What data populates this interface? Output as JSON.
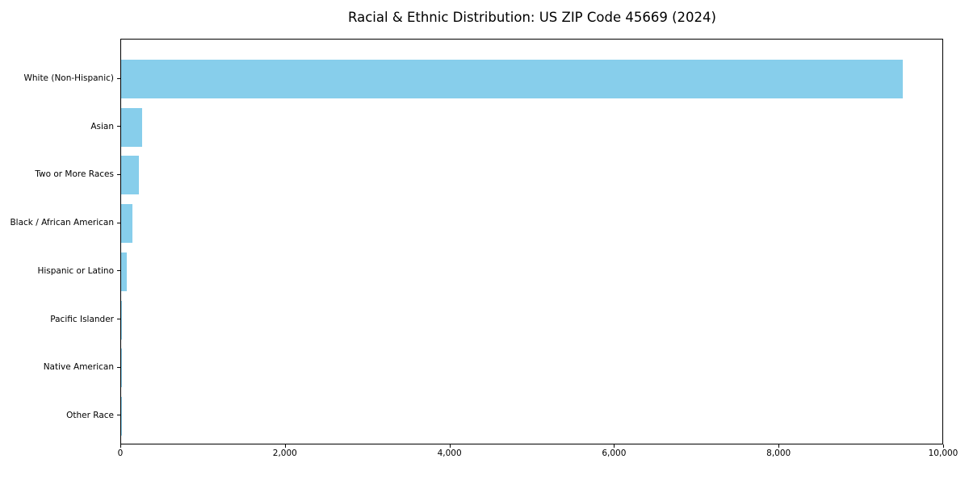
{
  "figure": {
    "title": "Racial & Ethnic Distribution: US ZIP Code 45669 (2024)"
  },
  "chart_data": {
    "type": "bar",
    "orientation": "horizontal",
    "title": "Racial & Ethnic Distribution: US ZIP Code 45669 (2024)",
    "categories": [
      "White (Non-Hispanic)",
      "Asian",
      "Two or More Races",
      "Black / African American",
      "Hispanic or Latino",
      "Pacific Islander",
      "Native American",
      "Other Race"
    ],
    "values": [
      9520,
      260,
      215,
      135,
      70,
      8,
      4,
      2
    ],
    "xlabel": "",
    "ylabel": "",
    "xlim": [
      0,
      10000
    ],
    "x_ticks": [
      0,
      2000,
      4000,
      6000,
      8000,
      10000
    ],
    "x_tick_labels": [
      "0",
      "2,000",
      "4,000",
      "6,000",
      "8,000",
      "10,000"
    ],
    "bar_color": "#87CEEB",
    "spine_color": "#000000",
    "text_color": "#000000",
    "background_color": "#FFFFFF",
    "grid": false,
    "legend": "none"
  }
}
